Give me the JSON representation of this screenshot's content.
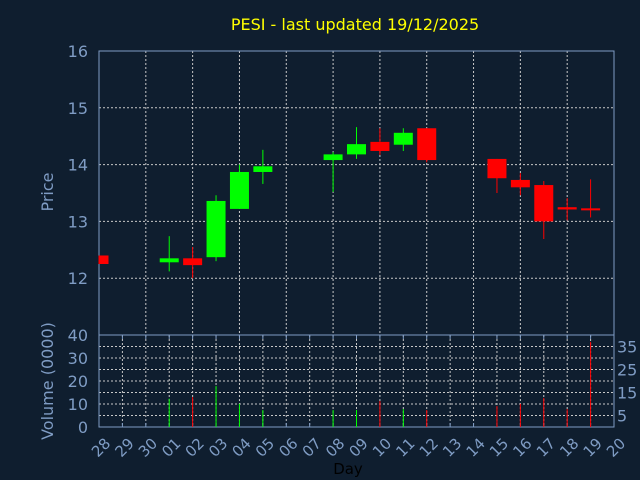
{
  "chart_data": {
    "type": "candlestick",
    "title": "PESI - last updated 19/12/2025",
    "xlabel": "Day",
    "ylabel": "Price",
    "volume_label": "Volume (0000)",
    "categories": [
      "28",
      "29",
      "30",
      "01",
      "02",
      "03",
      "04",
      "05",
      "06",
      "07",
      "08",
      "09",
      "10",
      "11",
      "12",
      "13",
      "14",
      "15",
      "16",
      "17",
      "18",
      "19",
      "20"
    ],
    "price_ylim": [
      11,
      16
    ],
    "price_ticks": [
      12,
      13,
      14,
      15,
      16
    ],
    "volume_ylim": [
      0,
      40
    ],
    "volume_ticks": [
      0,
      5,
      10,
      15,
      20,
      25,
      30,
      35,
      40
    ],
    "grid": true,
    "colors": {
      "up": "#00ff00",
      "down": "#ff0000",
      "title": "#ffff00",
      "axis": "#7f9cc4",
      "grid": "#c8c8c8",
      "background": "#0f1e2f"
    },
    "candles": [
      {
        "day": "28",
        "open": 12.4,
        "high": 12.4,
        "low": 12.25,
        "close": 12.25,
        "volume": 0
      },
      {
        "day": "01",
        "open": 12.28,
        "high": 12.74,
        "low": 12.12,
        "close": 12.35,
        "volume": 12.3
      },
      {
        "day": "02",
        "open": 12.35,
        "high": 12.55,
        "low": 12.0,
        "close": 12.23,
        "volume": 13.0
      },
      {
        "day": "03",
        "open": 12.37,
        "high": 13.46,
        "low": 12.3,
        "close": 13.36,
        "volume": 17.8
      },
      {
        "day": "04",
        "open": 13.22,
        "high": 14.0,
        "low": 13.22,
        "close": 13.87,
        "volume": 10.1
      },
      {
        "day": "05",
        "open": 13.87,
        "high": 14.26,
        "low": 13.66,
        "close": 13.97,
        "volume": 7.4
      },
      {
        "day": "08",
        "open": 14.08,
        "high": 14.22,
        "low": 13.52,
        "close": 14.18,
        "volume": 7.4
      },
      {
        "day": "09",
        "open": 14.18,
        "high": 14.66,
        "low": 14.1,
        "close": 14.36,
        "volume": 7.4
      },
      {
        "day": "10",
        "open": 14.4,
        "high": 14.64,
        "low": 14.17,
        "close": 14.24,
        "volume": 11.3
      },
      {
        "day": "11",
        "open": 14.35,
        "high": 14.64,
        "low": 14.24,
        "close": 14.56,
        "volume": 7.8
      },
      {
        "day": "12",
        "open": 14.64,
        "high": 14.64,
        "low": 14.04,
        "close": 14.08,
        "volume": 7.4
      },
      {
        "day": "15",
        "open": 14.1,
        "high": 14.1,
        "low": 13.5,
        "close": 13.76,
        "volume": 9.1
      },
      {
        "day": "16",
        "open": 13.73,
        "high": 13.85,
        "low": 13.46,
        "close": 13.6,
        "volume": 10.1
      },
      {
        "day": "17",
        "open": 13.64,
        "high": 13.71,
        "low": 12.69,
        "close": 13.0,
        "volume": 12.6
      },
      {
        "day": "18",
        "open": 13.25,
        "high": 13.41,
        "low": 13.02,
        "close": 13.21,
        "volume": 7.8
      },
      {
        "day": "19",
        "open": 13.23,
        "high": 13.74,
        "low": 13.07,
        "close": 13.2,
        "volume": 37.0
      }
    ]
  }
}
